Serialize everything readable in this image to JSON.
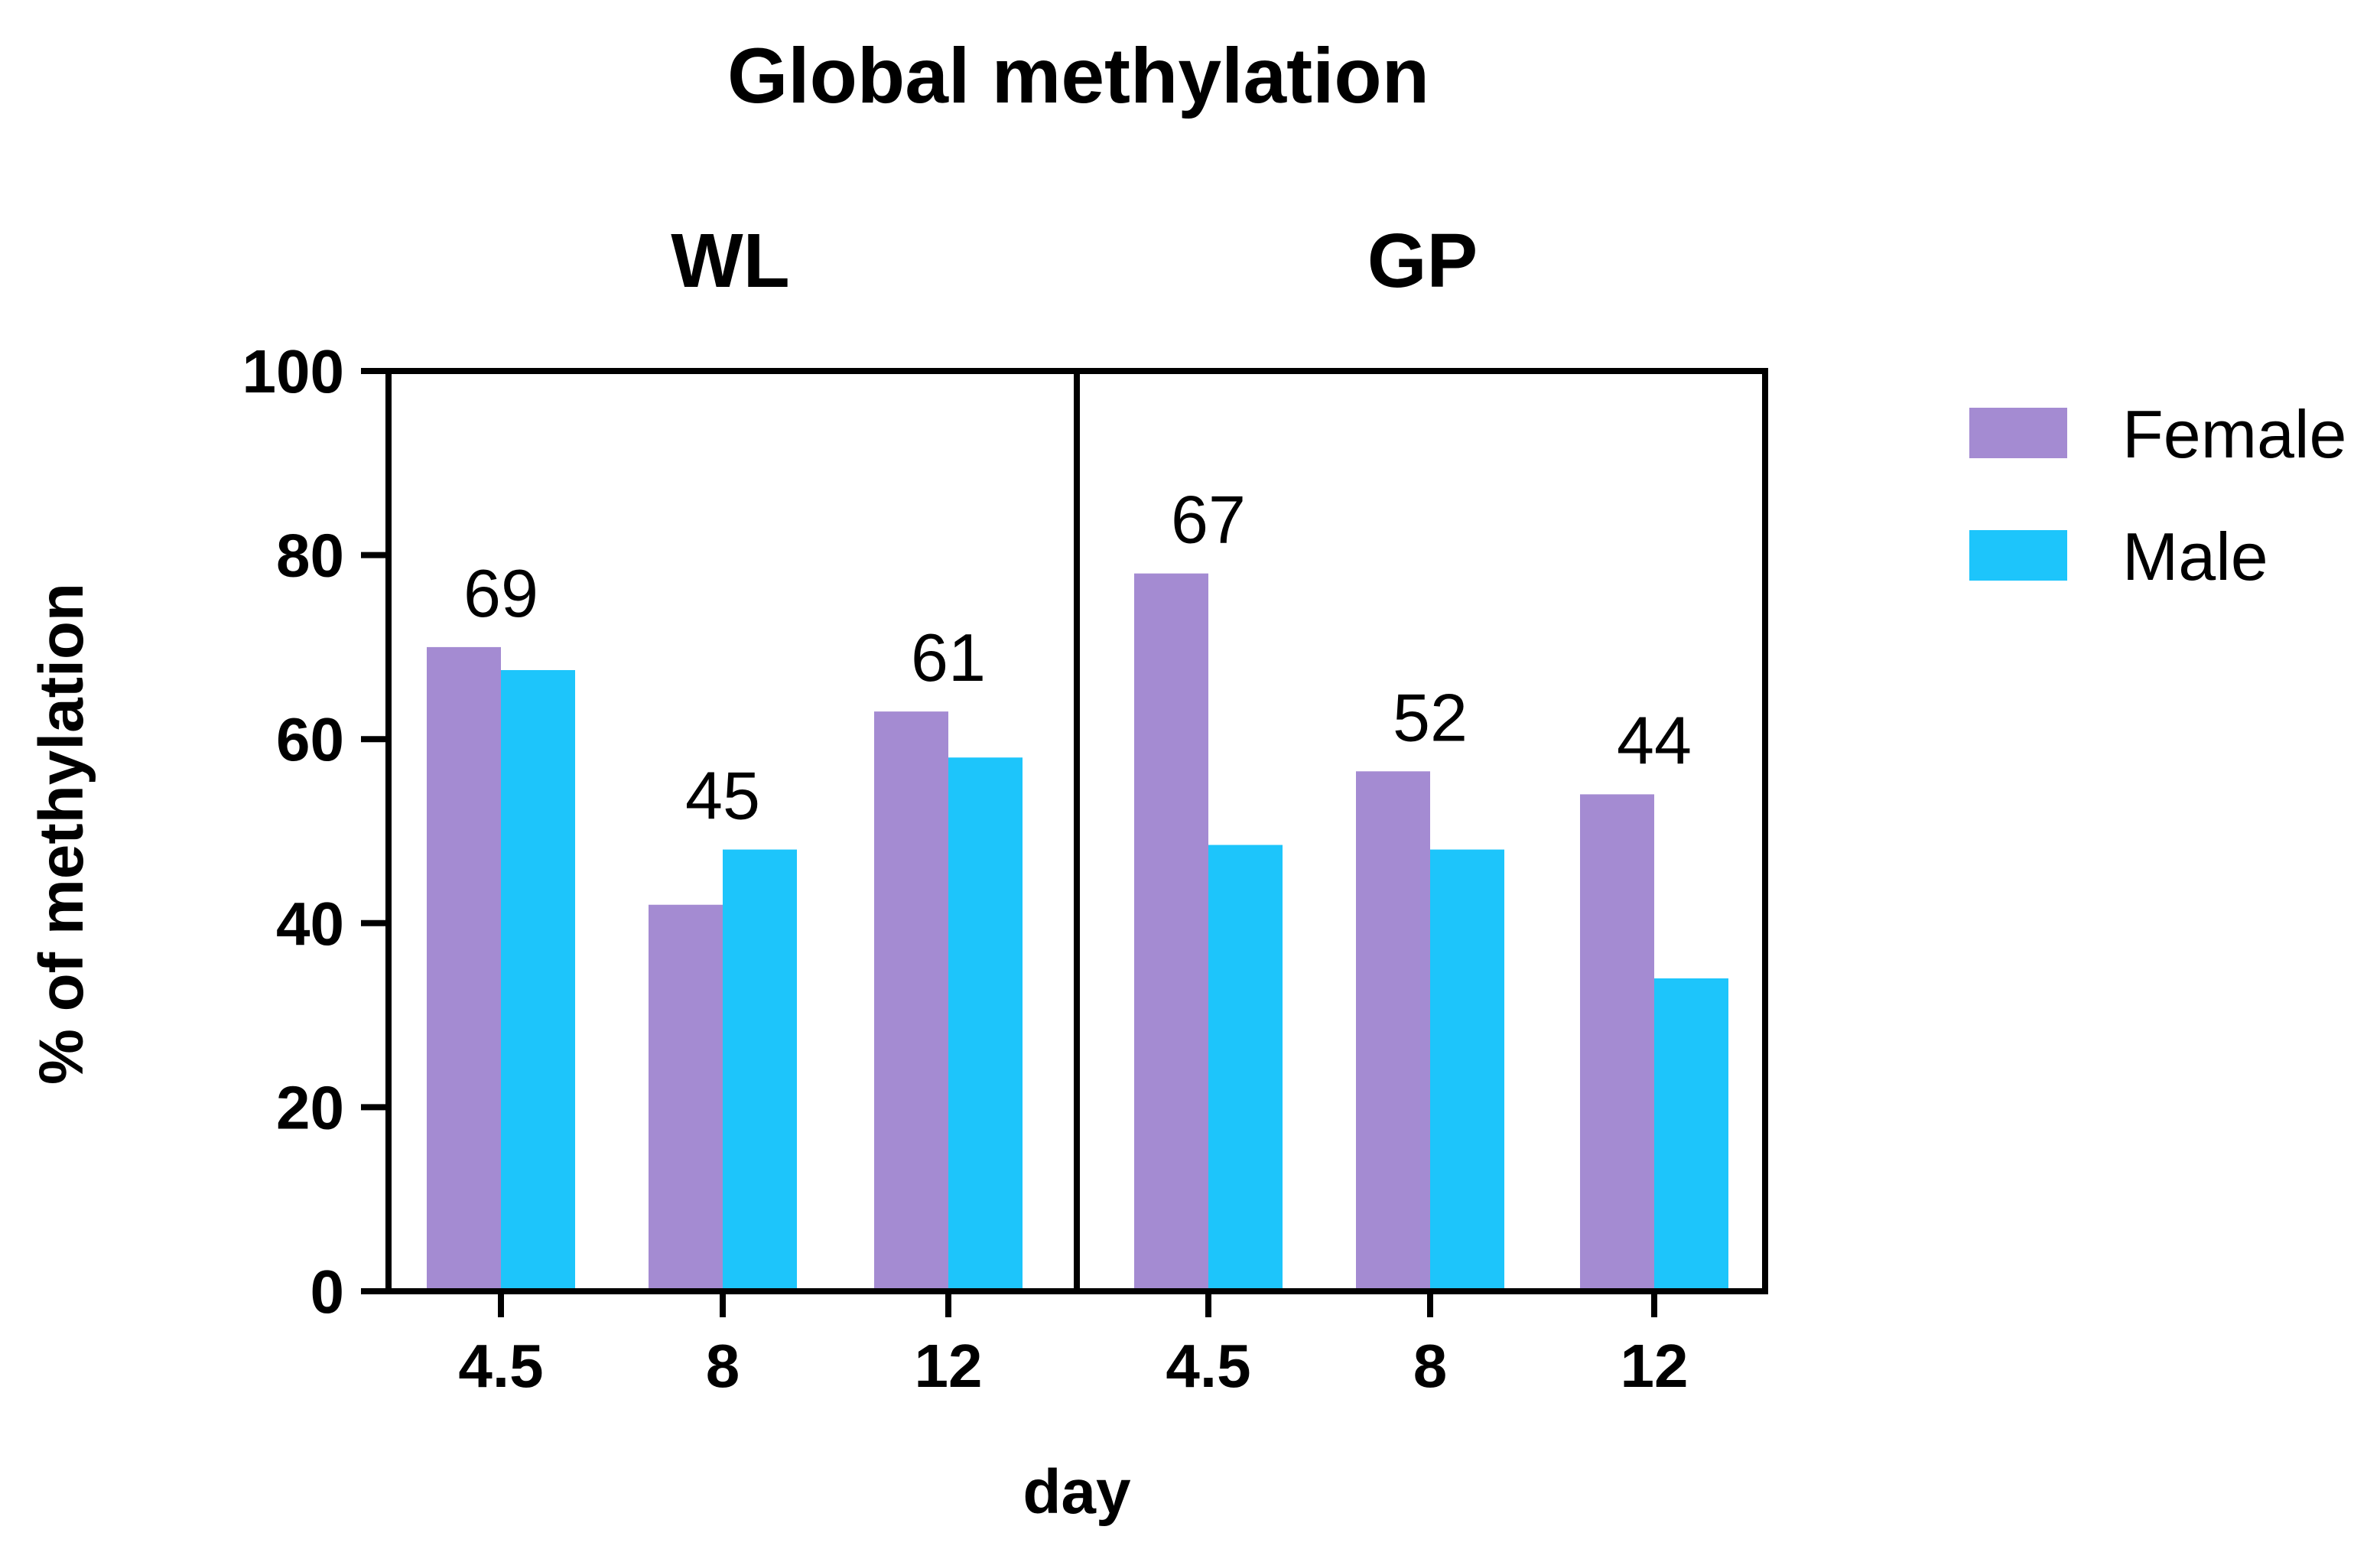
{
  "chart_data": {
    "type": "bar",
    "title": "Global methylation",
    "xlabel": "day",
    "ylabel": "% of methylation",
    "ylim": [
      0,
      100
    ],
    "yticks": [
      0,
      20,
      40,
      60,
      80,
      100
    ],
    "legend_position": "right",
    "colors": {
      "Female": "#A48BD2",
      "Male": "#1DC5FB"
    },
    "series_names": [
      "Female",
      "Male"
    ],
    "panels": [
      {
        "name": "WL",
        "categories": [
          "4.5",
          "8",
          "12"
        ],
        "series": [
          {
            "name": "Female",
            "values": [
              70,
              42,
              63
            ]
          },
          {
            "name": "Male",
            "values": [
              67.5,
              48,
              58
            ]
          }
        ],
        "annotations": [
          "69",
          "45",
          "61"
        ]
      },
      {
        "name": "GP",
        "categories": [
          "4.5",
          "8",
          "12"
        ],
        "series": [
          {
            "name": "Female",
            "values": [
              78,
              56.5,
              54
            ]
          },
          {
            "name": "Male",
            "values": [
              48.5,
              48,
              34
            ]
          }
        ],
        "annotations": [
          "67",
          "52",
          "44"
        ]
      }
    ]
  }
}
